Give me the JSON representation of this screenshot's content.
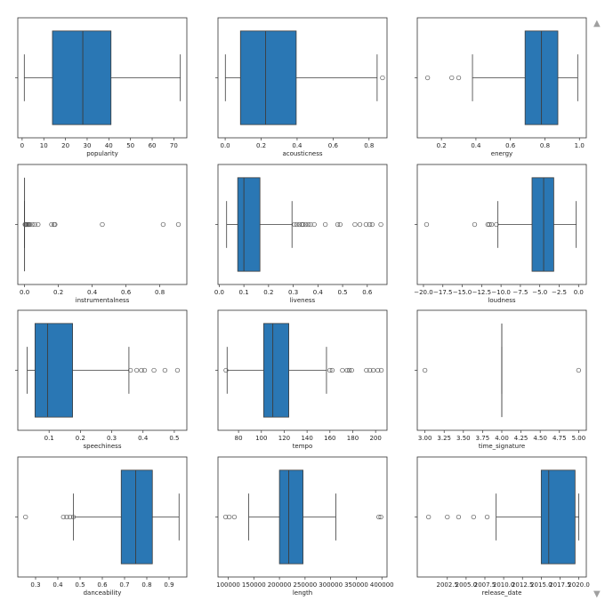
{
  "colors": {
    "box_fill": "#2a77b4",
    "line": "#3c3c3c",
    "frame": "#333333"
  },
  "chart_data": [
    {
      "type": "box",
      "xlabel": "popularity",
      "xlim": [
        -2,
        76
      ],
      "ticks": [
        0,
        10,
        20,
        30,
        40,
        50,
        60,
        70
      ],
      "tick_labels": [
        "0",
        "10",
        "20",
        "30",
        "40",
        "50",
        "60",
        "70"
      ],
      "whislo": 1,
      "q1": 14,
      "median": 28,
      "q3": 41,
      "whishi": 73,
      "fliers": []
    },
    {
      "type": "box",
      "xlabel": "acousticness",
      "xlim": [
        -0.04,
        0.9
      ],
      "ticks": [
        0,
        0.2,
        0.4,
        0.6,
        0.8
      ],
      "tick_labels": [
        "0.0",
        "0.2",
        "0.4",
        "0.6",
        "0.8"
      ],
      "whislo": 0.001,
      "q1": 0.085,
      "median": 0.225,
      "q3": 0.395,
      "whishi": 0.845,
      "fliers": [
        0.875
      ]
    },
    {
      "type": "box",
      "xlabel": "energy",
      "xlim": [
        0.06,
        1.04
      ],
      "ticks": [
        0.2,
        0.4,
        0.6,
        0.8,
        1.0
      ],
      "tick_labels": [
        "0.2",
        "0.4",
        "0.6",
        "0.8",
        "1.0"
      ],
      "whislo": 0.38,
      "q1": 0.685,
      "median": 0.78,
      "q3": 0.875,
      "whishi": 0.99,
      "fliers": [
        0.12,
        0.26,
        0.3
      ]
    },
    {
      "type": "box",
      "xlabel": "instrumentalness",
      "xlim": [
        -0.04,
        0.96
      ],
      "ticks": [
        0,
        0.2,
        0.4,
        0.6,
        0.8
      ],
      "tick_labels": [
        "0.0",
        "0.2",
        "0.4",
        "0.6",
        "0.8"
      ],
      "whislo": 0,
      "q1": 0,
      "median": 0,
      "q3": 0,
      "whishi": 0,
      "fliers": [
        0.003,
        0.006,
        0.01,
        0.015,
        0.02,
        0.025,
        0.03,
        0.045,
        0.06,
        0.08,
        0.16,
        0.175,
        0.18,
        0.46,
        0.82,
        0.91
      ]
    },
    {
      "type": "box",
      "xlabel": "liveness",
      "xlim": [
        -0.005,
        0.68
      ],
      "ticks": [
        0,
        0.1,
        0.2,
        0.3,
        0.4,
        0.5,
        0.6
      ],
      "tick_labels": [
        "0.0",
        "0.1",
        "0.2",
        "0.3",
        "0.4",
        "0.5",
        "0.6"
      ],
      "whislo": 0.03,
      "q1": 0.075,
      "median": 0.1,
      "q3": 0.165,
      "whishi": 0.295,
      "fliers": [
        0.305,
        0.315,
        0.325,
        0.335,
        0.34,
        0.35,
        0.36,
        0.37,
        0.385,
        0.43,
        0.48,
        0.49,
        0.55,
        0.57,
        0.595,
        0.61,
        0.62,
        0.655
      ]
    },
    {
      "type": "box",
      "xlabel": "loudness",
      "xlim": [
        -20.8,
        1.0
      ],
      "ticks": [
        -20,
        -17.5,
        -15,
        -12.5,
        -10,
        -7.5,
        -5,
        -2.5,
        0
      ],
      "tick_labels": [
        "−20.0",
        "−17.5",
        "−15.0",
        "−12.5",
        "−10.0",
        "−7.5",
        "−5.0",
        "−2.5",
        "0.0"
      ],
      "whislo": -10.4,
      "q1": -6.0,
      "median": -4.5,
      "q3": -3.2,
      "whishi": -0.3,
      "fliers": [
        -19.6,
        -13.4,
        -11.7,
        -11.5,
        -11.2,
        -10.6
      ]
    },
    {
      "type": "box",
      "xlabel": "speechiness",
      "xlim": [
        0.0,
        0.54
      ],
      "ticks": [
        0.1,
        0.2,
        0.3,
        0.4,
        0.5
      ],
      "tick_labels": [
        "0.1",
        "0.2",
        "0.3",
        "0.4",
        "0.5"
      ],
      "whislo": 0.03,
      "q1": 0.055,
      "median": 0.095,
      "q3": 0.175,
      "whishi": 0.355,
      "fliers": [
        0.36,
        0.38,
        0.395,
        0.405,
        0.435,
        0.47,
        0.51
      ]
    },
    {
      "type": "box",
      "xlabel": "tempo",
      "xlim": [
        62,
        210
      ],
      "ticks": [
        80,
        100,
        120,
        140,
        160,
        180,
        200
      ],
      "tick_labels": [
        "80",
        "100",
        "120",
        "140",
        "160",
        "180",
        "200"
      ],
      "whislo": 70,
      "q1": 102,
      "median": 110,
      "q3": 124,
      "whishi": 157,
      "fliers": [
        69,
        160,
        162,
        171,
        175,
        177,
        179,
        192,
        195,
        198,
        202,
        205
      ]
    },
    {
      "type": "box",
      "xlabel": "time_signature",
      "xlim": [
        2.9,
        5.1
      ],
      "ticks": [
        3.0,
        3.25,
        3.5,
        3.75,
        4.0,
        4.25,
        4.5,
        4.75,
        5.0
      ],
      "tick_labels": [
        "3.00",
        "3.25",
        "3.50",
        "3.75",
        "4.00",
        "4.25",
        "4.50",
        "4.75",
        "5.00"
      ],
      "whislo": 4,
      "q1": 4,
      "median": 4,
      "q3": 4,
      "whishi": 4,
      "fliers": [
        3,
        5
      ]
    },
    {
      "type": "box",
      "xlabel": "danceability",
      "xlim": [
        0.22,
        0.98
      ],
      "ticks": [
        0.3,
        0.4,
        0.5,
        0.6,
        0.7,
        0.8,
        0.9
      ],
      "tick_labels": [
        "0.3",
        "0.4",
        "0.5",
        "0.6",
        "0.7",
        "0.8",
        "0.9"
      ],
      "whislo": 0.47,
      "q1": 0.685,
      "median": 0.75,
      "q3": 0.825,
      "whishi": 0.945,
      "fliers": [
        0.255,
        0.425,
        0.44,
        0.455,
        0.47
      ]
    },
    {
      "type": "box",
      "xlabel": "length",
      "xlim": [
        80000,
        410000
      ],
      "ticks": [
        100000,
        150000,
        200000,
        250000,
        300000,
        350000,
        400000
      ],
      "tick_labels": [
        "100000",
        "150000",
        "200000",
        "250000",
        "300000",
        "350000",
        "400000"
      ],
      "whislo": 140000,
      "q1": 200000,
      "median": 218000,
      "q3": 246000,
      "whishi": 310000,
      "fliers": [
        95000,
        102000,
        112000,
        394000,
        398000
      ]
    },
    {
      "type": "box",
      "xlabel": "release_date",
      "xlim": [
        1998.5,
        2021.0
      ],
      "ticks": [
        2002.5,
        2005.0,
        2007.5,
        2010.0,
        2012.5,
        2015.0,
        2017.5,
        2020.0
      ],
      "tick_labels": [
        "2002.5",
        "2005.0",
        "2007.5",
        "2010.0",
        "2012.5",
        "2015.0",
        "2017.5",
        "2020.0"
      ],
      "whislo": 2009,
      "q1": 2015,
      "median": 2016,
      "q3": 2019.5,
      "whishi": 2020,
      "fliers": [
        2000,
        2002.5,
        2004,
        2006,
        2007.8
      ]
    }
  ]
}
